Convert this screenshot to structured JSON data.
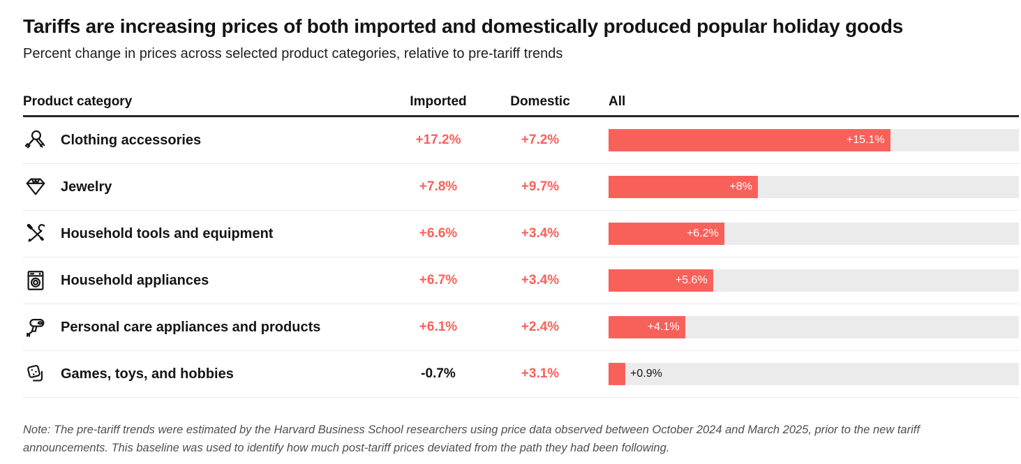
{
  "page": {
    "title": "Tariffs are increasing prices of both imported and domestically produced popular holiday goods",
    "subtitle": "Percent change in prices across selected product categories, relative to pre-tariff trends",
    "note": "Note: The pre-tariff trends were estimated by the Harvard Business School researchers using price data observed between October 2024 and March 2025, prior to the new tariff announcements. This baseline was used to identify how much post-tariff prices deviated from the path they had been following."
  },
  "table": {
    "headers": {
      "category": "Product category",
      "imported": "Imported",
      "domestic": "Domestic",
      "all": "All"
    }
  },
  "colors": {
    "accent": "#F8615A",
    "track": "#EBEBEB",
    "header_rule": "#262626"
  },
  "chart_data": {
    "type": "bar",
    "title": "Tariffs are increasing prices of both imported and domestically produced popular holiday goods",
    "subtitle": "Percent change in prices across selected product categories, relative to pre-tariff trends",
    "categories": [
      "Clothing accessories",
      "Jewelry",
      "Household tools and equipment",
      "Household appliances",
      "Personal care appliances and products",
      "Games, toys, and hobbies"
    ],
    "series": [
      {
        "name": "Imported",
        "values": [
          17.2,
          7.8,
          6.6,
          6.7,
          6.1,
          -0.7
        ]
      },
      {
        "name": "Domestic",
        "values": [
          7.2,
          9.7,
          3.4,
          3.4,
          2.4,
          3.1
        ]
      },
      {
        "name": "All",
        "values": [
          15.1,
          8,
          6.2,
          5.6,
          4.1,
          0.9
        ]
      }
    ],
    "axis_max": 22,
    "bar_series_shown_as_bars": "All",
    "rows": [
      {
        "icon": "scarf-icon",
        "category": "Clothing accessories",
        "imported": "+17.2%",
        "domestic": "+7.2%",
        "all": 15.1,
        "all_label": "+15.1%",
        "all_label_position": "inside"
      },
      {
        "icon": "diamond-icon",
        "category": "Jewelry",
        "imported": "+7.8%",
        "domestic": "+9.7%",
        "all": 8,
        "all_label": "+8%",
        "all_label_position": "inside"
      },
      {
        "icon": "tools-icon",
        "category": "Household tools and equipment",
        "imported": "+6.6%",
        "domestic": "+3.4%",
        "all": 6.2,
        "all_label": "+6.2%",
        "all_label_position": "inside"
      },
      {
        "icon": "washing-machine-icon",
        "category": "Household appliances",
        "imported": "+6.7%",
        "domestic": "+3.4%",
        "all": 5.6,
        "all_label": "+5.6%",
        "all_label_position": "inside"
      },
      {
        "icon": "hair-dryer-icon",
        "category": "Personal care appliances and products",
        "imported": "+6.1%",
        "domestic": "+2.4%",
        "all": 4.1,
        "all_label": "+4.1%",
        "all_label_position": "inside"
      },
      {
        "icon": "dice-icon",
        "category": "Games, toys, and hobbies",
        "imported": "-0.7%",
        "domestic": "+3.1%",
        "all": 0.9,
        "all_label": "+0.9%",
        "all_label_position": "outside"
      }
    ]
  }
}
